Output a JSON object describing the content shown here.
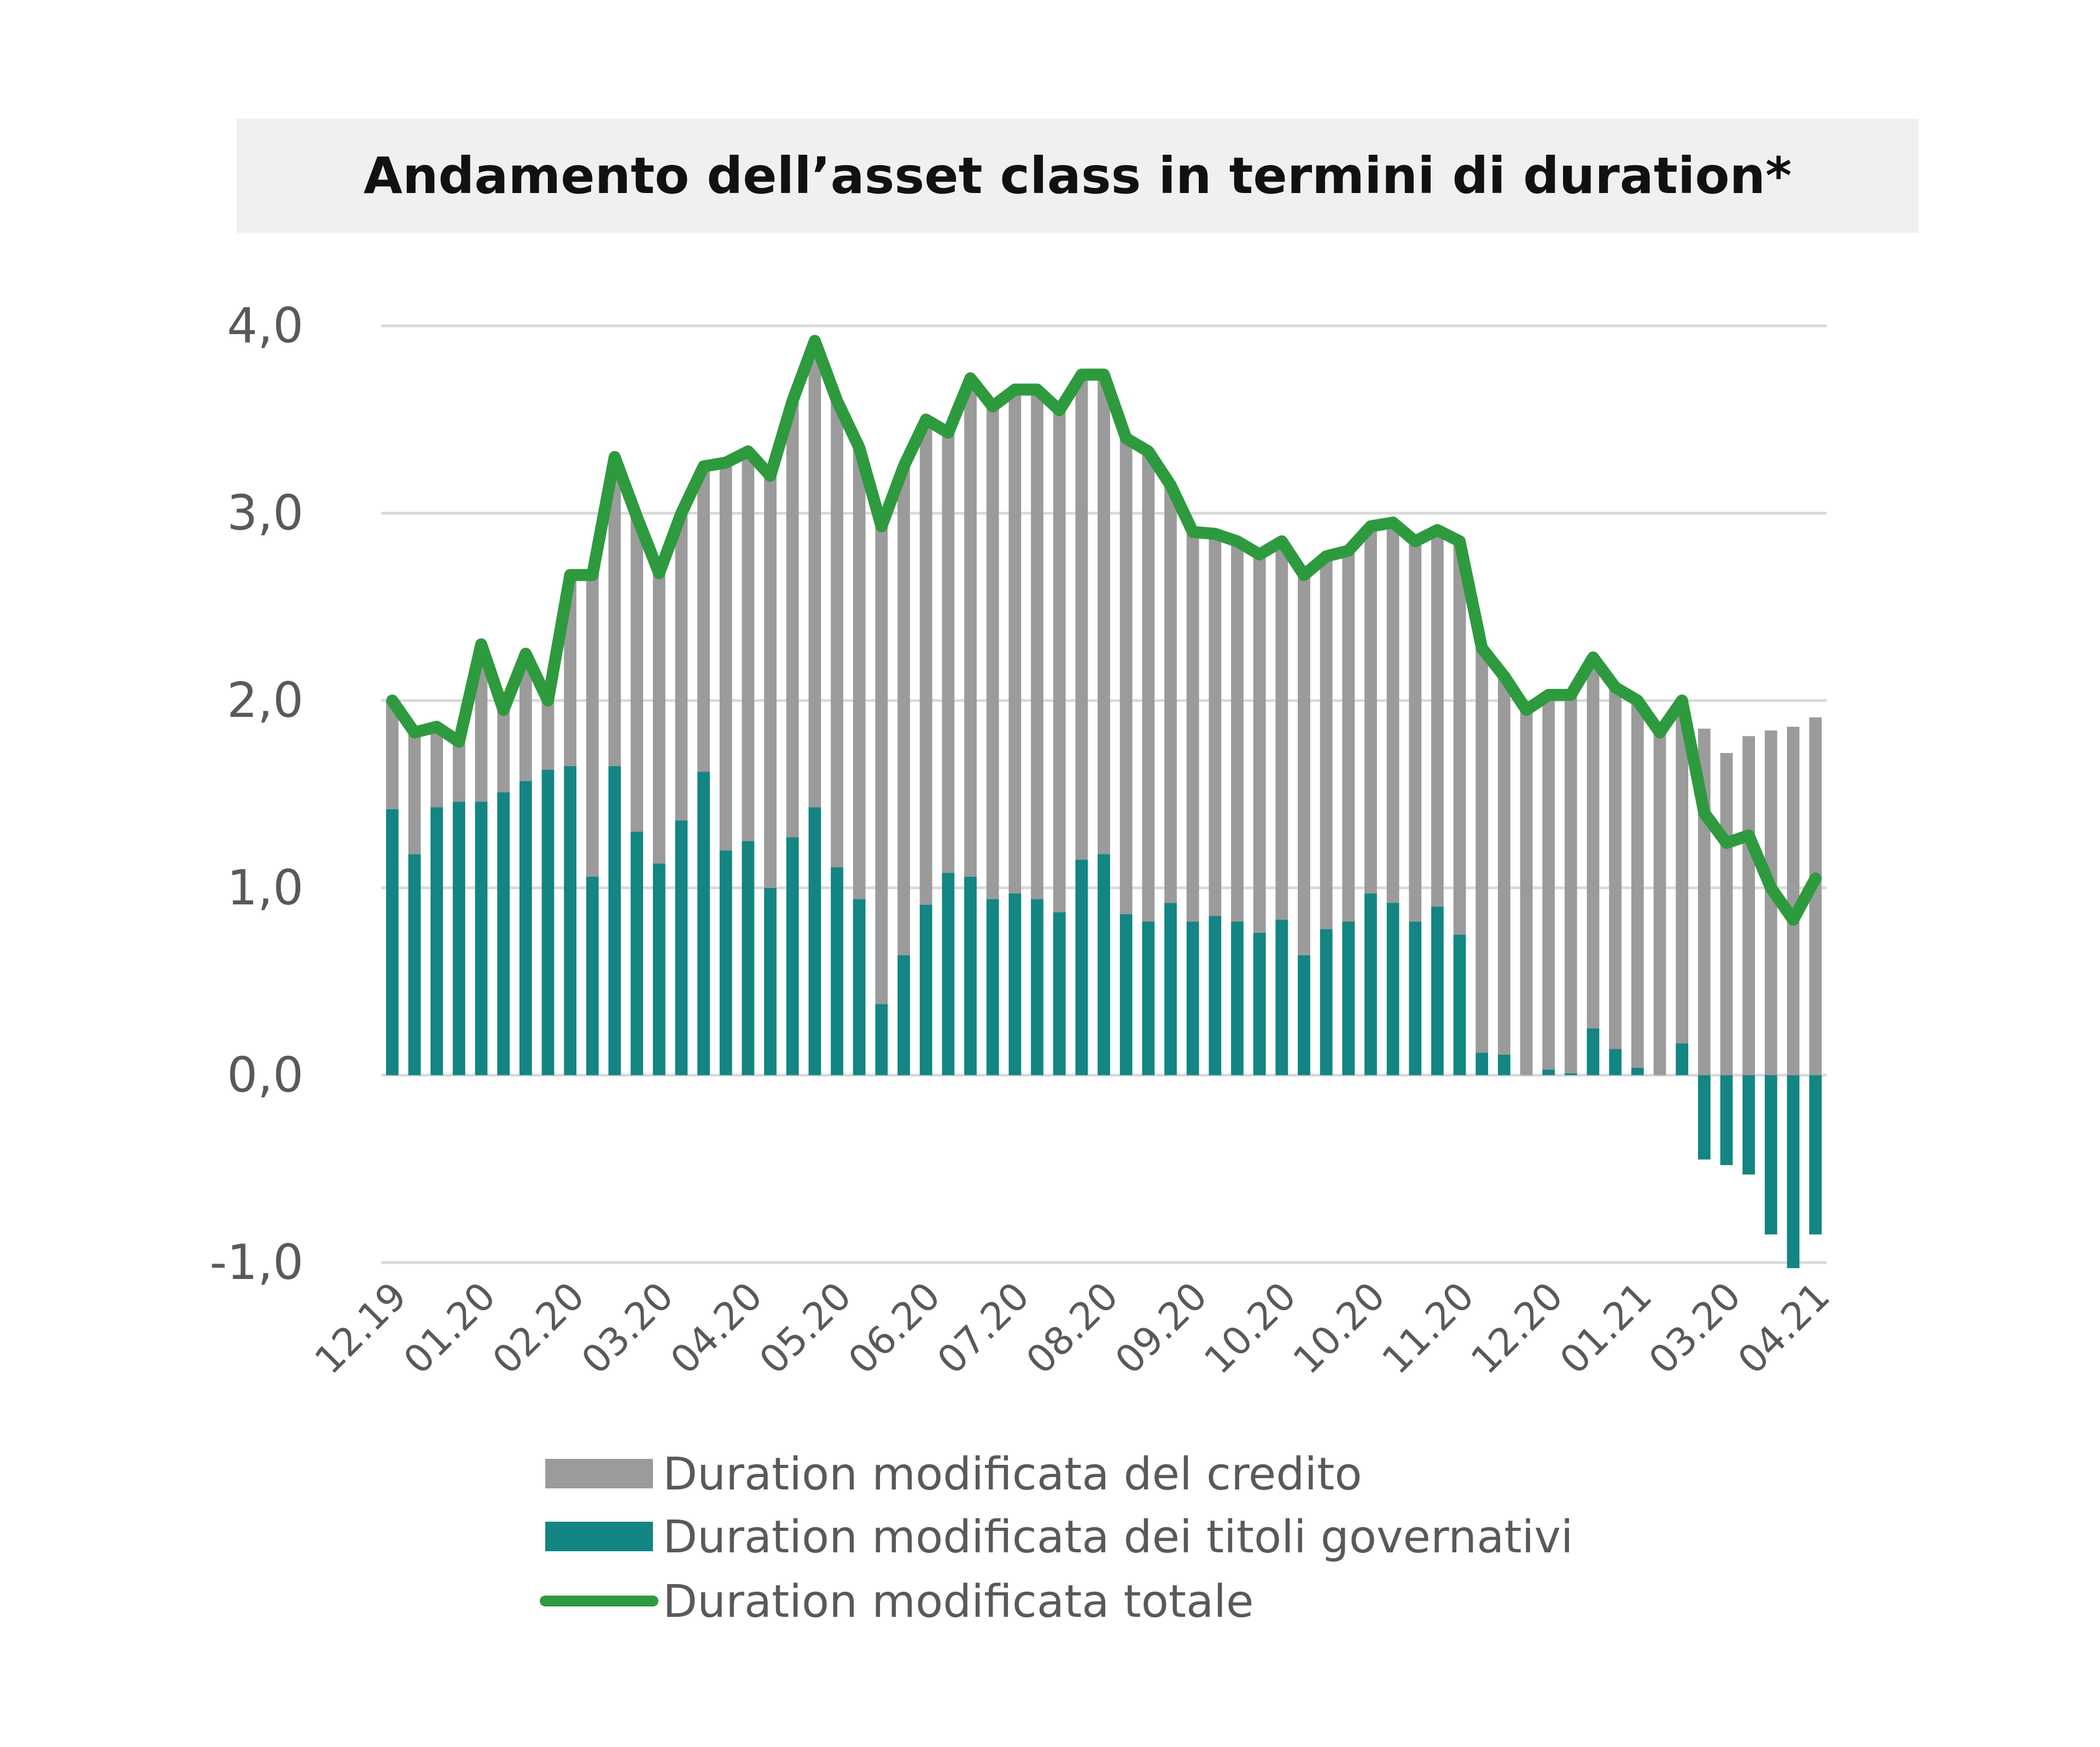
{
  "chart_data": {
    "type": "bar",
    "stacked": true,
    "title": "Andamento dell’asset class in termini di duration*",
    "xlabel": "",
    "ylabel": "",
    "ylim": [
      -1,
      4
    ],
    "yticks": [
      "4,0",
      "3,0",
      "2,0",
      "1,0",
      "0,0",
      "-1,0"
    ],
    "ytick_values": [
      4,
      3,
      2,
      1,
      0,
      -1
    ],
    "grid": true,
    "legend_position": "bottom",
    "x_tick_labels": [
      "12.19",
      "01.20",
      "02.20",
      "03.20",
      "04.20",
      "05.20",
      "06.20",
      "07.20",
      "08.20",
      "09.20",
      "10.20",
      "10.20",
      "11.20",
      "12.20",
      "01.21",
      "03.20",
      "04.21"
    ],
    "x_tick_every": 4,
    "series": [
      {
        "name": "Duration modificata del credito",
        "kind": "bar",
        "color": "#9b9b9b",
        "values": [
          0.58,
          0.65,
          0.43,
          0.32,
          0.84,
          0.44,
          0.68,
          0.37,
          1.02,
          1.61,
          1.65,
          1.68,
          1.55,
          1.64,
          1.63,
          2.07,
          2.08,
          2.2,
          2.33,
          2.49,
          2.49,
          2.41,
          2.55,
          2.61,
          2.59,
          2.35,
          2.66,
          2.63,
          2.69,
          2.72,
          2.68,
          2.59,
          2.56,
          2.54,
          2.51,
          2.23,
          2.08,
          2.04,
          2.03,
          2.02,
          2.02,
          2.03,
          1.99,
          1.98,
          1.96,
          2.03,
          2.03,
          2.01,
          2.1,
          2.16,
          2.02,
          1.95,
          2.0,
          2.02,
          1.98,
          1.93,
          1.96,
          1.83,
          1.83,
          1.85,
          1.72,
          1.81,
          1.84,
          1.86,
          1.91
        ]
      },
      {
        "name": "Duration modificata dei titoli governativi",
        "kind": "bar",
        "color": "#138582",
        "values": [
          1.42,
          1.18,
          1.43,
          1.46,
          1.46,
          1.51,
          1.57,
          1.63,
          1.65,
          1.06,
          1.65,
          1.3,
          1.13,
          1.36,
          1.62,
          1.2,
          1.25,
          1.0,
          1.27,
          1.43,
          1.11,
          0.94,
          0.38,
          0.64,
          0.91,
          1.08,
          1.06,
          0.94,
          0.97,
          0.94,
          0.87,
          1.15,
          1.18,
          0.86,
          0.82,
          0.92,
          0.82,
          0.85,
          0.82,
          0.76,
          0.83,
          0.64,
          0.78,
          0.82,
          0.97,
          0.92,
          0.82,
          0.9,
          0.75,
          0.12,
          0.11,
          0.0,
          0.03,
          0.01,
          0.25,
          0.14,
          0.04,
          0.0,
          0.17,
          -0.45,
          -0.48,
          -0.53,
          -0.85,
          -1.03,
          -0.85
        ]
      },
      {
        "name": "Duration modificata totale",
        "kind": "line",
        "color": "#2e9a3e",
        "values": [
          2.0,
          1.83,
          1.86,
          1.78,
          2.3,
          1.95,
          2.25,
          2.0,
          2.67,
          2.67,
          3.3,
          2.98,
          2.68,
          3.0,
          3.25,
          3.27,
          3.33,
          3.2,
          3.6,
          3.92,
          3.6,
          3.35,
          2.93,
          3.25,
          3.5,
          3.43,
          3.72,
          3.57,
          3.66,
          3.66,
          3.55,
          3.74,
          3.74,
          3.4,
          3.33,
          3.15,
          2.9,
          2.89,
          2.85,
          2.78,
          2.85,
          2.67,
          2.77,
          2.8,
          2.93,
          2.95,
          2.85,
          2.91,
          2.85,
          2.28,
          2.13,
          1.95,
          2.03,
          2.03,
          2.23,
          2.07,
          2.0,
          1.83,
          2.0,
          1.4,
          1.24,
          1.28,
          1.0,
          0.83,
          1.05
        ]
      }
    ]
  }
}
